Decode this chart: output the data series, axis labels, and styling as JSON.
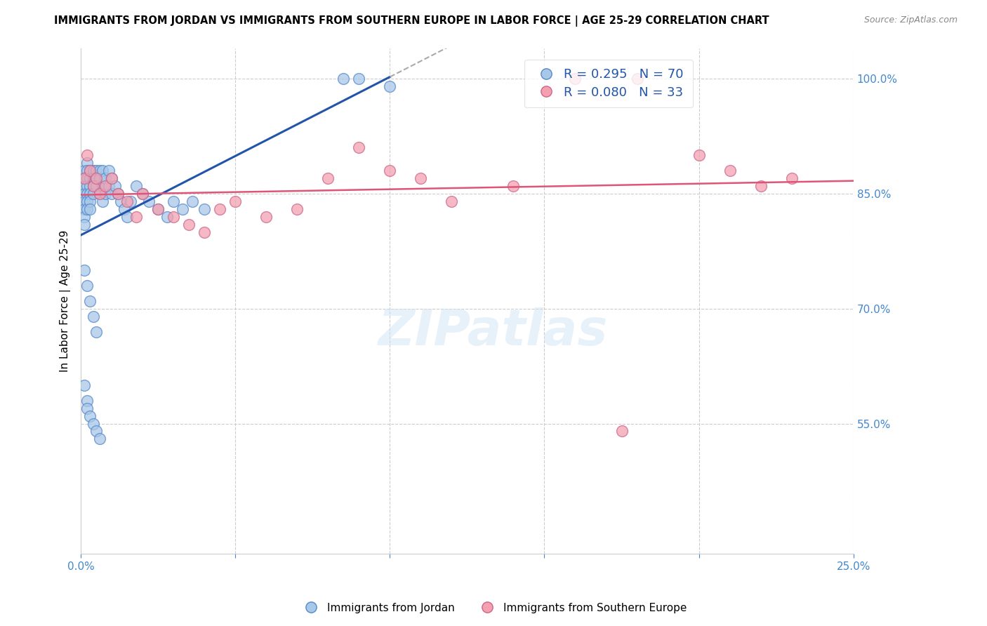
{
  "title": "IMMIGRANTS FROM JORDAN VS IMMIGRANTS FROM SOUTHERN EUROPE IN LABOR FORCE | AGE 25-29 CORRELATION CHART",
  "source": "Source: ZipAtlas.com",
  "ylabel": "In Labor Force | Age 25-29",
  "xlim": [
    0.0,
    0.25
  ],
  "ylim": [
    0.38,
    1.04
  ],
  "ytick_vals_right": [
    0.55,
    0.7,
    0.85,
    1.0
  ],
  "jordan_R": 0.295,
  "jordan_N": 70,
  "southern_R": 0.08,
  "southern_N": 33,
  "jordan_color": "#a8c8e8",
  "southern_color": "#f4a0b0",
  "jordan_edge_color": "#5588cc",
  "southern_edge_color": "#cc6688",
  "jordan_line_color": "#2255aa",
  "southern_line_color": "#dd5577",
  "legend_label_jordan": "Immigrants from Jordan",
  "legend_label_southern": "Immigrants from Southern Europe",
  "background_color": "#ffffff",
  "grid_color": "#cccccc",
  "jordan_x": [
    0.001,
    0.001,
    0.001,
    0.001,
    0.001,
    0.001,
    0.001,
    0.001,
    0.002,
    0.002,
    0.002,
    0.002,
    0.002,
    0.002,
    0.002,
    0.003,
    0.003,
    0.003,
    0.003,
    0.003,
    0.003,
    0.004,
    0.004,
    0.004,
    0.004,
    0.005,
    0.005,
    0.005,
    0.006,
    0.006,
    0.006,
    0.007,
    0.007,
    0.007,
    0.008,
    0.008,
    0.009,
    0.009,
    0.01,
    0.01,
    0.011,
    0.012,
    0.013,
    0.014,
    0.015,
    0.016,
    0.018,
    0.02,
    0.022,
    0.025,
    0.028,
    0.03,
    0.033,
    0.036,
    0.04,
    0.001,
    0.002,
    0.003,
    0.004,
    0.005,
    0.001,
    0.002,
    0.002,
    0.003,
    0.004,
    0.005,
    0.006,
    0.085,
    0.09,
    0.1
  ],
  "jordan_y": [
    0.88,
    0.87,
    0.86,
    0.85,
    0.84,
    0.83,
    0.82,
    0.81,
    0.89,
    0.88,
    0.87,
    0.86,
    0.85,
    0.84,
    0.83,
    0.88,
    0.87,
    0.86,
    0.85,
    0.84,
    0.83,
    0.88,
    0.87,
    0.86,
    0.85,
    0.88,
    0.87,
    0.86,
    0.88,
    0.87,
    0.85,
    0.88,
    0.86,
    0.84,
    0.87,
    0.85,
    0.88,
    0.86,
    0.87,
    0.85,
    0.86,
    0.85,
    0.84,
    0.83,
    0.82,
    0.84,
    0.86,
    0.85,
    0.84,
    0.83,
    0.82,
    0.84,
    0.83,
    0.84,
    0.83,
    0.75,
    0.73,
    0.71,
    0.69,
    0.67,
    0.6,
    0.58,
    0.57,
    0.56,
    0.55,
    0.54,
    0.53,
    1.0,
    1.0,
    0.99
  ],
  "southern_x": [
    0.001,
    0.002,
    0.003,
    0.004,
    0.005,
    0.006,
    0.008,
    0.01,
    0.012,
    0.015,
    0.018,
    0.02,
    0.025,
    0.03,
    0.035,
    0.04,
    0.045,
    0.05,
    0.06,
    0.07,
    0.08,
    0.09,
    0.1,
    0.11,
    0.12,
    0.14,
    0.16,
    0.18,
    0.2,
    0.21,
    0.22,
    0.23,
    0.175
  ],
  "southern_y": [
    0.87,
    0.9,
    0.88,
    0.86,
    0.87,
    0.85,
    0.86,
    0.87,
    0.85,
    0.84,
    0.82,
    0.85,
    0.83,
    0.82,
    0.81,
    0.8,
    0.83,
    0.84,
    0.82,
    0.83,
    0.87,
    0.91,
    0.88,
    0.87,
    0.84,
    0.86,
    1.0,
    1.0,
    0.9,
    0.88,
    0.86,
    0.87,
    0.54
  ]
}
